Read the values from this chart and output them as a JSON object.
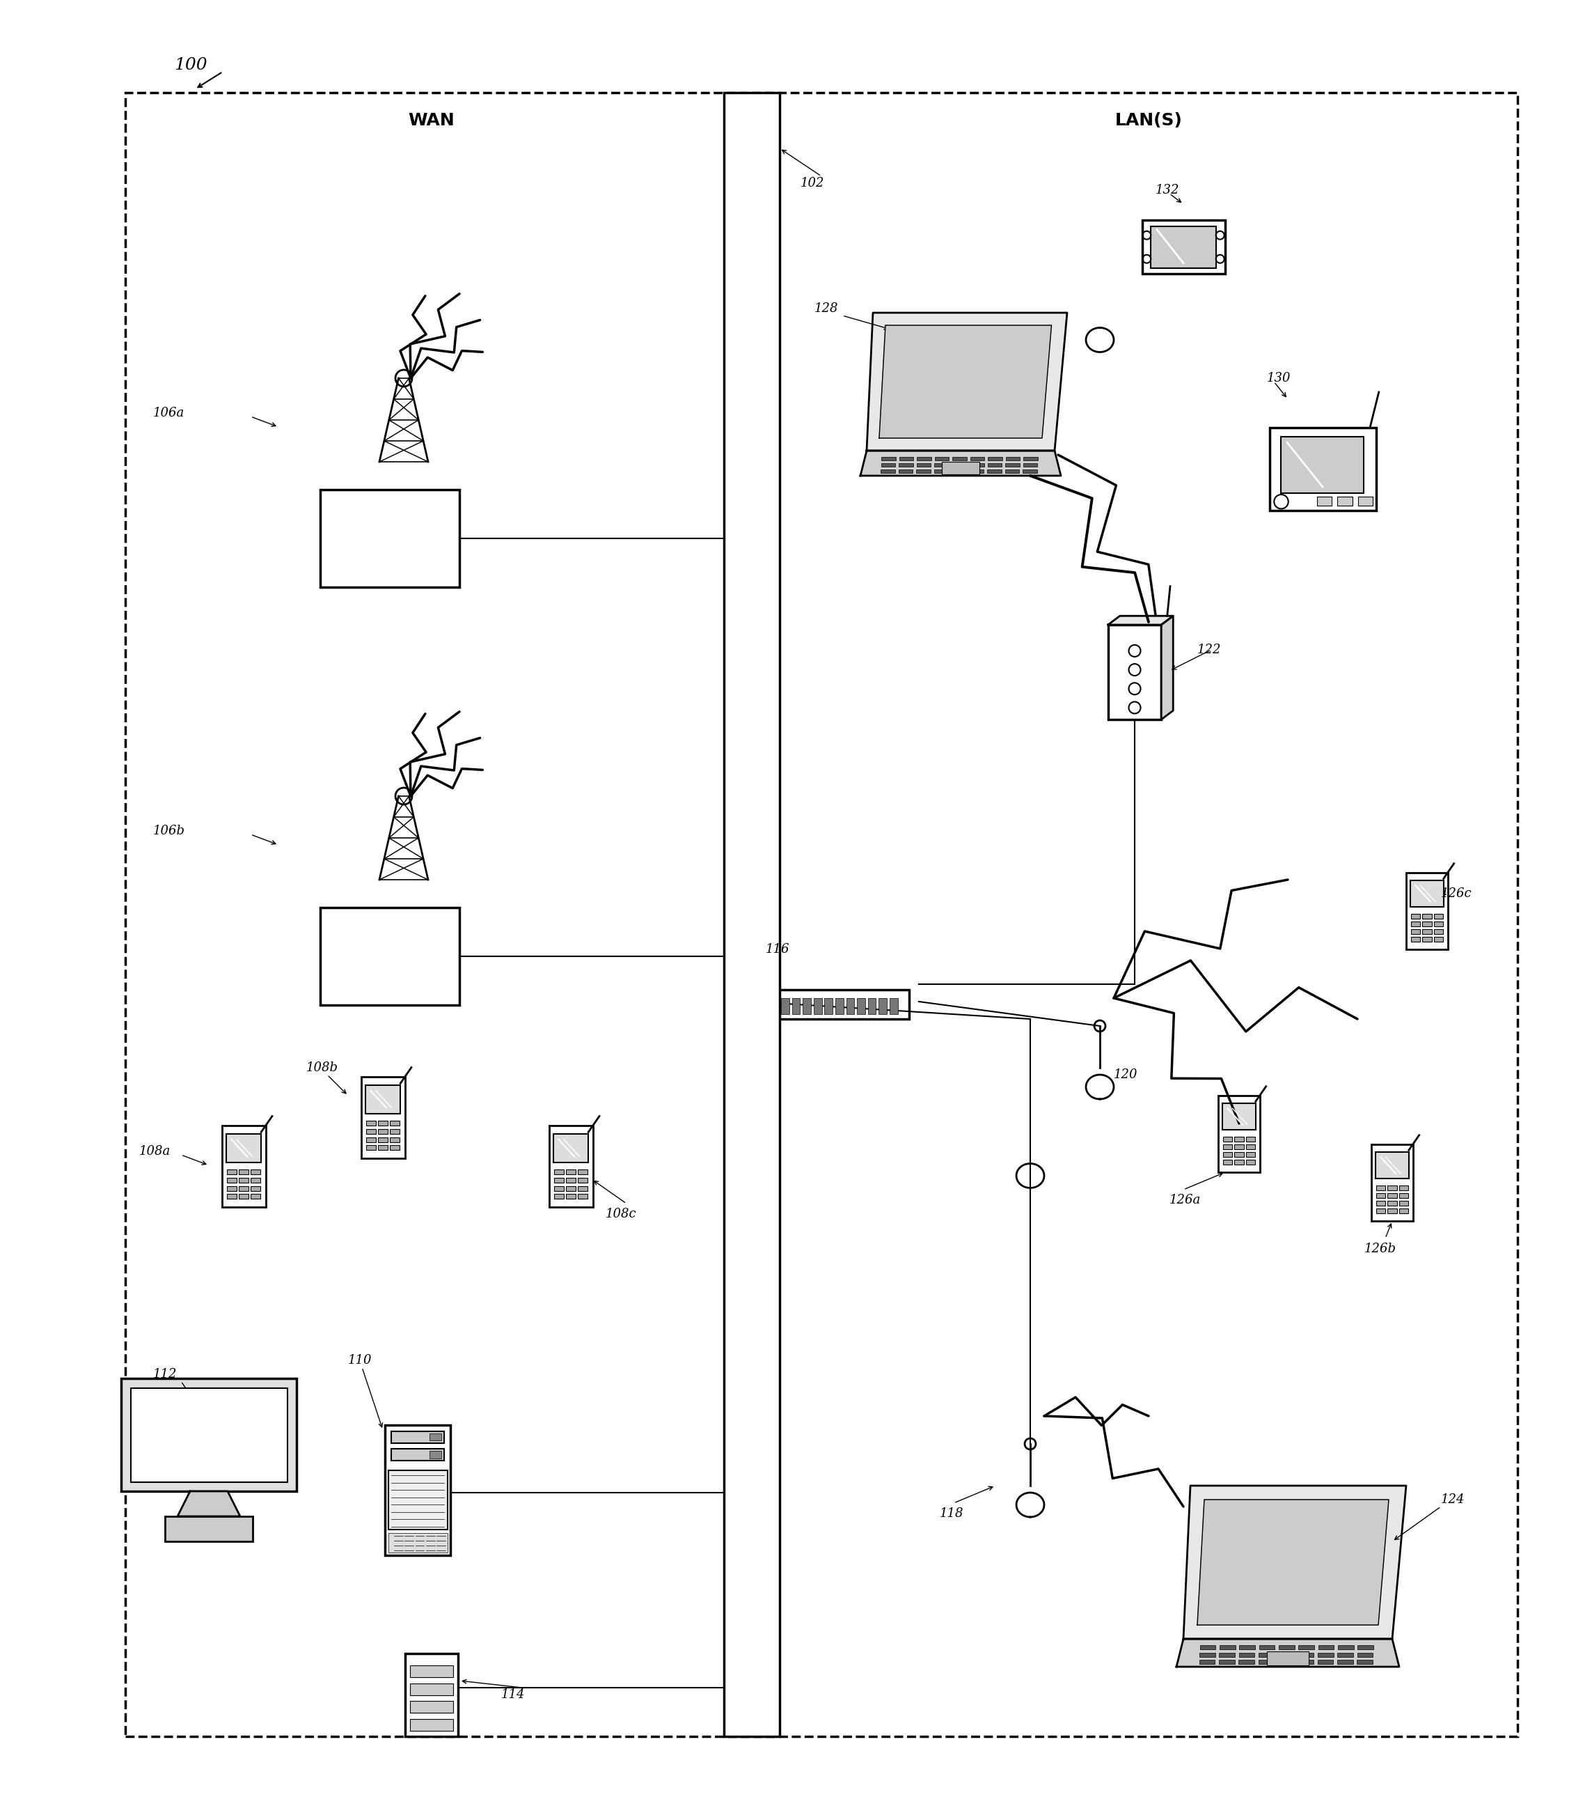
{
  "fig_width": 22.64,
  "fig_height": 26.13,
  "bg_color": "#ffffff",
  "label_100": "100",
  "label_wan": "WAN",
  "label_lans": "LAN(S)",
  "label_102": "102",
  "label_106a": "106a",
  "label_106b": "106b",
  "label_108a": "108a",
  "label_108b": "108b",
  "label_108c": "108c",
  "label_110": "110",
  "label_112": "112",
  "label_114": "114",
  "label_116": "116",
  "label_118": "118",
  "label_120": "120",
  "label_122": "122",
  "label_124": "124",
  "label_126a": "126a",
  "label_126b": "126b",
  "label_126c": "126c",
  "label_128": "128",
  "label_130": "130",
  "label_132": "132"
}
